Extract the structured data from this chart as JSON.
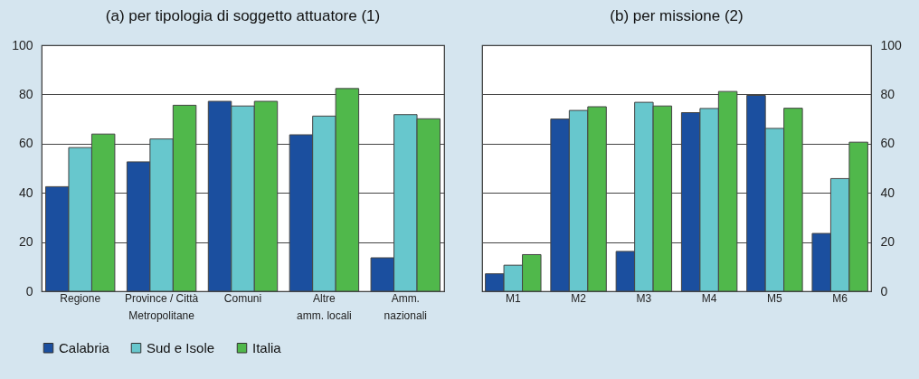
{
  "chart_data": [
    {
      "type": "bar",
      "title": "(a) per tipologia di soggetto attuatore (1)",
      "categories": [
        "Regione",
        "Province / Città\nMetropolitane",
        "Comuni",
        "Altre\namm. locali",
        "Amm.\nnazionali"
      ],
      "series": [
        {
          "name": "Calabria",
          "color": "#1b4f9f",
          "values": [
            42.5,
            52.6,
            77.2,
            63.6,
            13.6
          ]
        },
        {
          "name": "Sud e Isole",
          "color": "#67c7cd",
          "values": [
            58.4,
            61.9,
            75.3,
            71.2,
            71.8
          ]
        },
        {
          "name": "Italia",
          "color": "#50b84b",
          "values": [
            63.9,
            75.6,
            77.2,
            82.4,
            70.1
          ]
        }
      ],
      "ylim": [
        0,
        100
      ],
      "yticks": [
        0,
        20,
        40,
        60,
        80,
        100
      ],
      "grid": "y",
      "legend": "bottom"
    },
    {
      "type": "bar",
      "title": "(b) per missione (2)",
      "categories": [
        "M1",
        "M2",
        "M3",
        "M4",
        "M5",
        "M6"
      ],
      "series": [
        {
          "name": "Calabria",
          "color": "#1b4f9f",
          "values": [
            7.1,
            70,
            16.2,
            72.6,
            79.6,
            23.5
          ]
        },
        {
          "name": "Sud e Isole",
          "color": "#67c7cd",
          "values": [
            10.6,
            73.5,
            76.8,
            74.3,
            66.2,
            45.8
          ]
        },
        {
          "name": "Italia",
          "color": "#50b84b",
          "values": [
            14.9,
            75,
            75.3,
            81.2,
            74.4,
            60.6
          ]
        }
      ],
      "ylim": [
        0,
        100
      ],
      "yticks": [
        0,
        20,
        40,
        60,
        80,
        100
      ],
      "grid": "y",
      "legend": "bottom"
    }
  ]
}
